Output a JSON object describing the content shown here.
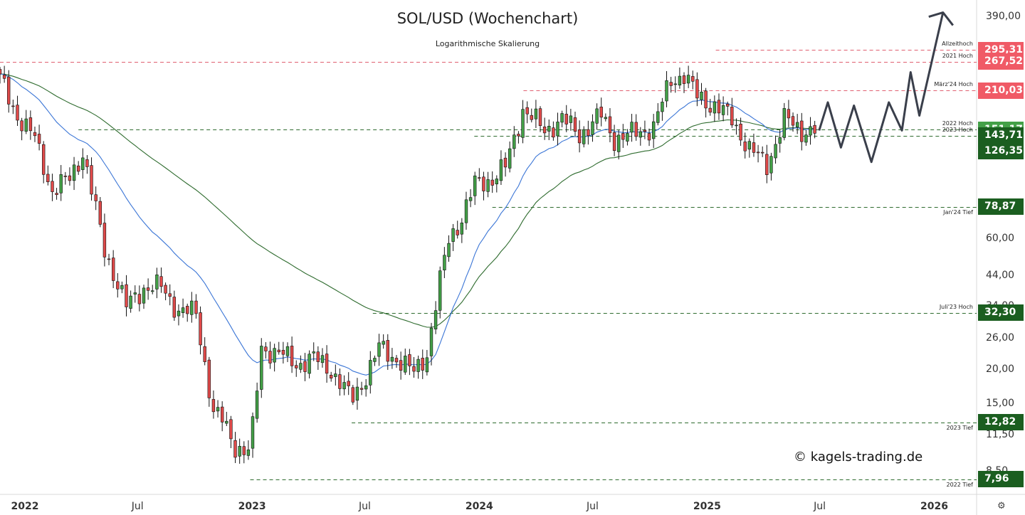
{
  "header": {
    "title": "SOL/USD (Wochenchart)",
    "subtitle": "Logarithmische Skalierung"
  },
  "watermark": "© kagels-trading.de",
  "settings_icon": "gear-icon",
  "chart_data": {
    "type": "candlestick",
    "title": "SOL/USD (Wochenchart)",
    "subtitle": "Logarithmische Skalierung",
    "yscale": "log",
    "ylim": [
      7,
      450
    ],
    "xlim": [
      "2021-11-22",
      "2026-03-10"
    ],
    "y_ticks": [
      "390,00",
      "60,00",
      "44,00",
      "34,00",
      "26,00",
      "20,00",
      "15,00",
      "11,50",
      "8,50"
    ],
    "x_ticks": [
      {
        "label": "2022",
        "date": "2022-01-01",
        "bold": true
      },
      {
        "label": "Jul",
        "date": "2022-07-01",
        "bold": false
      },
      {
        "label": "2023",
        "date": "2023-01-01",
        "bold": true
      },
      {
        "label": "Jul",
        "date": "2023-07-01",
        "bold": false
      },
      {
        "label": "2024",
        "date": "2024-01-01",
        "bold": true
      },
      {
        "label": "Jul",
        "date": "2024-07-01",
        "bold": false
      },
      {
        "label": "2025",
        "date": "2025-01-01",
        "bold": true
      },
      {
        "label": "Jul",
        "date": "2025-07-01",
        "bold": false
      },
      {
        "label": "2026",
        "date": "2026-01-01",
        "bold": true
      }
    ],
    "levels": [
      {
        "name": "Allzeithoch",
        "value": 295.31,
        "label": "295,31",
        "color": "#f05a66",
        "line_color": "#e06070",
        "start": "2025-01-15"
      },
      {
        "name": "2021 Hoch",
        "value": 267.52,
        "label": "267,52",
        "color": "#f05a66",
        "line_color": "#e06070",
        "start": "2021-11-22"
      },
      {
        "name": "März'24 Hoch",
        "value": 210.03,
        "label": "210,03",
        "color": "#f05a66",
        "line_color": "#e06070",
        "start": "2024-03-12"
      },
      {
        "name": "2022 Hoch",
        "value": 151.17,
        "label": "151,17",
        "color": "#43a047",
        "line_color": "#2e6b2e",
        "start": "2022-03-28"
      },
      {
        "name": "2023 Hoch",
        "value": 143.71,
        "label": "143,71",
        "color": "#1b5e20",
        "line_color": "#2e6b2e",
        "start": "2023-12-24"
      },
      {
        "name": "",
        "value": 126.35,
        "label": "126,35",
        "color": "#1b5e20",
        "line_color": "#2e6b2e",
        "start": "2025-04-07",
        "line": false
      },
      {
        "name": "Jan'24 Tief",
        "value": 78.87,
        "label": "78,87",
        "color": "#1b5e20",
        "line_color": "#2e6b2e",
        "start": "2024-01-22"
      },
      {
        "name": "Juli'23 Hoch",
        "value": 32.3,
        "label": "32,30",
        "color": "#1b5e20",
        "line_color": "#2e6b2e",
        "start": "2023-07-14"
      },
      {
        "name": "2023 Tief",
        "value": 12.82,
        "label": "12,82",
        "color": "#1b5e20",
        "line_color": "#2e6b2e",
        "start": "2023-06-10"
      },
      {
        "name": "2022 Tief",
        "value": 7.96,
        "label": "7,96",
        "color": "#1b5e20",
        "line_color": "#2e6b2e",
        "start": "2022-12-29"
      }
    ],
    "anchor_series": {
      "dates": [
        "2021-11-22",
        "2021-12-20",
        "2022-01-17",
        "2022-02-14",
        "2022-03-14",
        "2022-04-04",
        "2022-05-09",
        "2022-06-13",
        "2022-07-11",
        "2022-08-08",
        "2022-09-05",
        "2022-10-03",
        "2022-10-31",
        "2022-11-14",
        "2022-12-05",
        "2022-12-29",
        "2023-01-16",
        "2023-02-13",
        "2023-03-13",
        "2023-04-10",
        "2023-05-08",
        "2023-06-10",
        "2023-07-03",
        "2023-07-24",
        "2023-08-21",
        "2023-09-18",
        "2023-10-09",
        "2023-10-30",
        "2023-11-13",
        "2023-12-04",
        "2023-12-25",
        "2024-01-22",
        "2024-02-12",
        "2024-03-11",
        "2024-04-15",
        "2024-05-13",
        "2024-06-10",
        "2024-07-15",
        "2024-08-05",
        "2024-09-02",
        "2024-10-07",
        "2024-11-04",
        "2024-11-25",
        "2024-12-16",
        "2025-01-13",
        "2025-02-10",
        "2025-03-10",
        "2025-04-07",
        "2025-05-05",
        "2025-06-02",
        "2025-06-23"
      ],
      "closes": [
        230,
        170,
        140,
        90,
        100,
        125,
        55,
        34,
        40,
        40,
        33,
        32,
        14,
        13,
        10.5,
        10,
        24,
        23,
        21,
        22,
        20,
        15.5,
        19,
        24,
        22,
        19.5,
        23,
        42,
        60,
        72,
        95,
        100,
        110,
        180,
        150,
        165,
        145,
        170,
        140,
        145,
        155,
        230,
        240,
        200,
        185,
        165,
        128,
        112,
        165,
        150,
        151
      ]
    },
    "series": [
      {
        "name": "",
        "type": "ema-fast",
        "color": "#3a75d6"
      },
      {
        "name": "",
        "type": "ema-slow",
        "color": "#2e6b2e"
      }
    ],
    "projection": {
      "color": "#3a3f4b",
      "points": [
        [
          "2025-06-30",
          150
        ],
        [
          "2025-07-14",
          190
        ],
        [
          "2025-08-04",
          130
        ],
        [
          "2025-08-25",
          185
        ],
        [
          "2025-09-22",
          115
        ],
        [
          "2025-10-20",
          190
        ],
        [
          "2025-11-10",
          150
        ],
        [
          "2025-11-24",
          245
        ],
        [
          "2025-12-08",
          170
        ],
        [
          "2026-01-15",
          405
        ]
      ]
    }
  }
}
